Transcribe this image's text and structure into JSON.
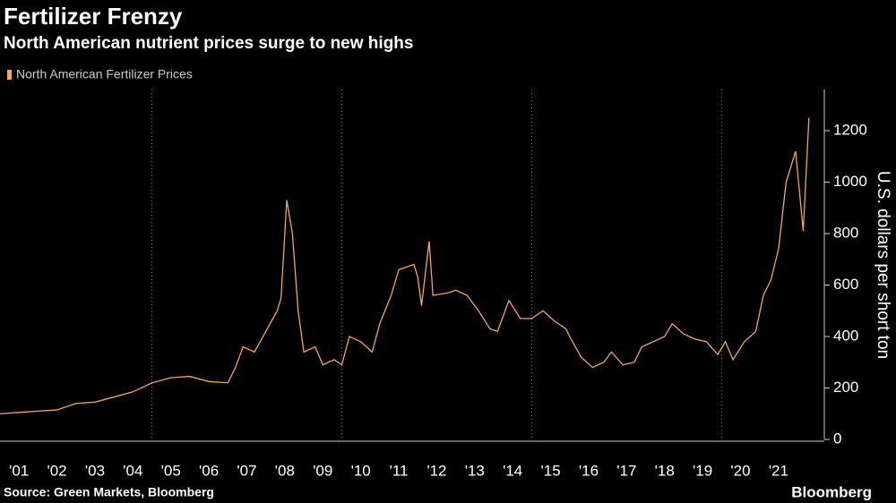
{
  "chart_data": {
    "type": "line",
    "title": "Fertilizer Frenzy",
    "subtitle": "North American nutrient prices surge to new highs",
    "y_label": "U.S. dollars per short ton",
    "source": "Source: Green Markets, Bloomberg",
    "brand": "Bloomberg",
    "x": [
      2001.0,
      2001.5,
      2002.0,
      2002.5,
      2003.0,
      2003.5,
      2004.0,
      2004.5,
      2005.0,
      2005.5,
      2006.0,
      2006.5,
      2007.0,
      2007.2,
      2007.4,
      2007.7,
      2008.0,
      2008.3,
      2008.4,
      2008.5,
      2008.55,
      2008.7,
      2008.85,
      2009.0,
      2009.3,
      2009.5,
      2009.8,
      2010.0,
      2010.2,
      2010.5,
      2010.8,
      2011.0,
      2011.3,
      2011.5,
      2011.9,
      2012.0,
      2012.1,
      2012.3,
      2012.4,
      2012.8,
      2013.0,
      2013.3,
      2013.6,
      2013.9,
      2014.1,
      2014.4,
      2014.7,
      2015.0,
      2015.3,
      2015.6,
      2015.9,
      2016.0,
      2016.3,
      2016.6,
      2016.9,
      2017.1,
      2017.4,
      2017.7,
      2017.9,
      2018.2,
      2018.5,
      2018.7,
      2019.0,
      2019.3,
      2019.6,
      2019.9,
      2020.1,
      2020.3,
      2020.6,
      2020.9,
      2021.1,
      2021.3,
      2021.5,
      2021.7,
      2021.95,
      2022.15,
      2022.3
    ],
    "series": [
      {
        "name": "North American Fertilizer Prices",
        "color": "#f0a660",
        "values": [
          100,
          105,
          110,
          115,
          140,
          145,
          165,
          185,
          220,
          240,
          245,
          225,
          220,
          280,
          360,
          340,
          420,
          500,
          550,
          800,
          930,
          800,
          500,
          340,
          360,
          290,
          310,
          290,
          400,
          380,
          340,
          450,
          560,
          660,
          680,
          630,
          520,
          770,
          560,
          570,
          580,
          560,
          500,
          430,
          420,
          540,
          470,
          470,
          500,
          460,
          430,
          400,
          320,
          280,
          300,
          340,
          290,
          300,
          360,
          380,
          400,
          450,
          410,
          390,
          380,
          330,
          380,
          310,
          380,
          420,
          560,
          620,
          740,
          1000,
          1120,
          810,
          1250
        ]
      }
    ],
    "xlim": [
      2001.0,
      2022.8
    ],
    "xticks": [
      {
        "value": 2001.5,
        "label": "'01"
      },
      {
        "value": 2002.5,
        "label": "'02"
      },
      {
        "value": 2003.5,
        "label": "'03"
      },
      {
        "value": 2004.5,
        "label": "'04"
      },
      {
        "value": 2005.5,
        "label": "'05"
      },
      {
        "value": 2006.5,
        "label": "'06"
      },
      {
        "value": 2007.5,
        "label": "'07"
      },
      {
        "value": 2008.5,
        "label": "'08"
      },
      {
        "value": 2009.5,
        "label": "'09"
      },
      {
        "value": 2010.5,
        "label": "'10"
      },
      {
        "value": 2011.5,
        "label": "'11"
      },
      {
        "value": 2012.5,
        "label": "'12"
      },
      {
        "value": 2013.5,
        "label": "'13"
      },
      {
        "value": 2014.5,
        "label": "'14"
      },
      {
        "value": 2015.5,
        "label": "'15"
      },
      {
        "value": 2016.5,
        "label": "'16"
      },
      {
        "value": 2017.5,
        "label": "'17"
      },
      {
        "value": 2018.5,
        "label": "'18"
      },
      {
        "value": 2019.5,
        "label": "'19"
      },
      {
        "value": 2020.5,
        "label": "'20"
      },
      {
        "value": 2021.5,
        "label": "'21"
      }
    ],
    "xgrid": [
      2005,
      2010,
      2015,
      2020
    ],
    "ylim": [
      0,
      1360
    ],
    "yticks": [
      0,
      200,
      400,
      600,
      800,
      1000,
      1200
    ]
  }
}
